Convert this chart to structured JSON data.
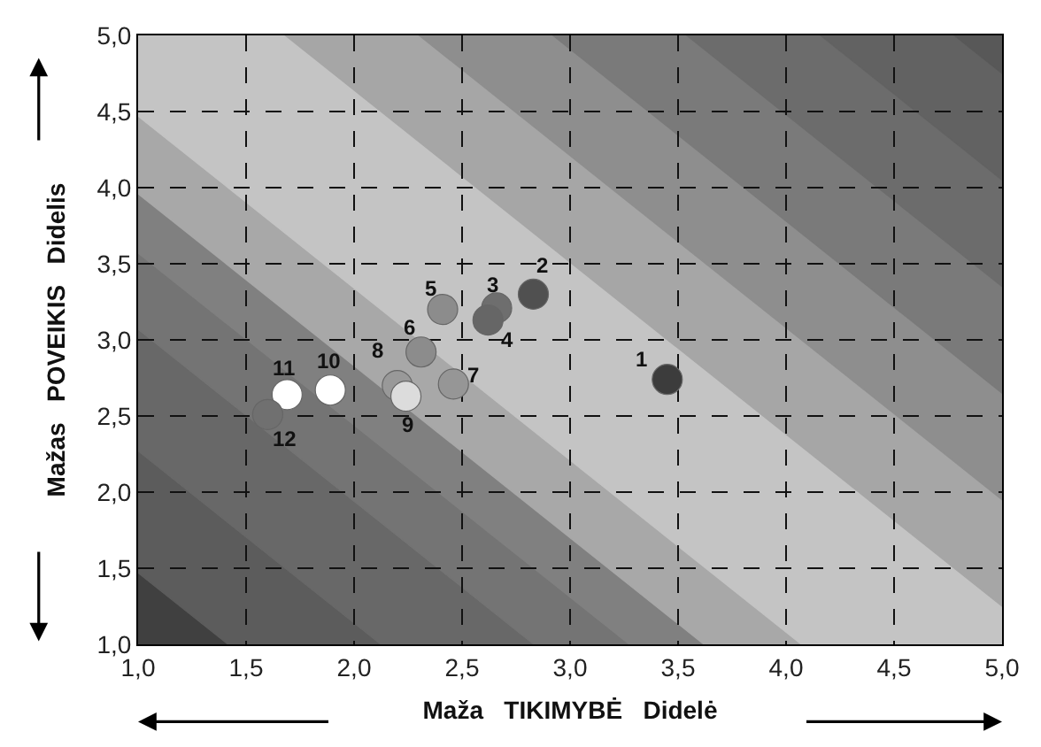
{
  "chart_data": {
    "type": "scatter",
    "xlabel": "Maža   TIKIMYBĖ   Didelė",
    "ylabel": "Mažas   POVEIKIS   Didelis",
    "x": [
      3.45,
      2.83,
      2.66,
      2.62,
      2.41,
      2.31,
      2.46,
      2.2,
      2.24,
      1.89,
      1.69,
      1.6
    ],
    "values": [
      2.74,
      3.3,
      3.21,
      3.13,
      3.2,
      2.92,
      2.71,
      2.7,
      2.63,
      2.67,
      2.64,
      2.51
    ],
    "colors": [
      "#3c3c3c",
      "#505050",
      "#6e6e6e",
      "#666666",
      "#8c8c8c",
      "#8c8c8c",
      "#969696",
      "#999999",
      "#dcdcdc",
      "#ffffff",
      "#ffffff",
      "#707070"
    ],
    "annotations": [
      {
        "text": "1",
        "x": 3.45,
        "y": 2.74
      },
      {
        "text": "2",
        "x": 2.83,
        "y": 3.3
      },
      {
        "text": "3",
        "x": 2.66,
        "y": 3.21
      },
      {
        "text": "4",
        "x": 2.62,
        "y": 3.13
      },
      {
        "text": "5",
        "x": 2.41,
        "y": 3.2
      },
      {
        "text": "6",
        "x": 2.31,
        "y": 2.92
      },
      {
        "text": "7",
        "x": 2.46,
        "y": 2.71
      },
      {
        "text": "8",
        "x": 2.2,
        "y": 2.7
      },
      {
        "text": "9",
        "x": 2.24,
        "y": 2.63
      },
      {
        "text": "10",
        "x": 1.89,
        "y": 2.67
      },
      {
        "text": "11",
        "x": 1.69,
        "y": 2.64
      },
      {
        "text": "12",
        "x": 1.6,
        "y": 2.51
      }
    ],
    "xlim": [
      1,
      5
    ],
    "ylim": [
      1,
      5
    ],
    "xticks": [
      {
        "value": 1,
        "label": "1,0"
      },
      {
        "value": 1.5,
        "label": "1,5"
      },
      {
        "value": 2,
        "label": "2,0"
      },
      {
        "value": 2.5,
        "label": "2,5"
      },
      {
        "value": 3,
        "label": "3,0"
      },
      {
        "value": 3.5,
        "label": "3,5"
      },
      {
        "value": 4,
        "label": "4,0"
      },
      {
        "value": 4.5,
        "label": "4,5"
      },
      {
        "value": 5,
        "label": "5,0"
      }
    ],
    "yticks": [
      {
        "value": 1,
        "label": "1,0"
      },
      {
        "value": 1.5,
        "label": "1,5"
      },
      {
        "value": 2,
        "label": "2,0"
      },
      {
        "value": 2.5,
        "label": "2,5"
      },
      {
        "value": 3,
        "label": "3,0"
      },
      {
        "value": 3.5,
        "label": "3,5"
      },
      {
        "value": 4,
        "label": "4,0"
      },
      {
        "value": 4.5,
        "label": "4,5"
      },
      {
        "value": 5,
        "label": "5,0"
      }
    ],
    "grid": true
  }
}
